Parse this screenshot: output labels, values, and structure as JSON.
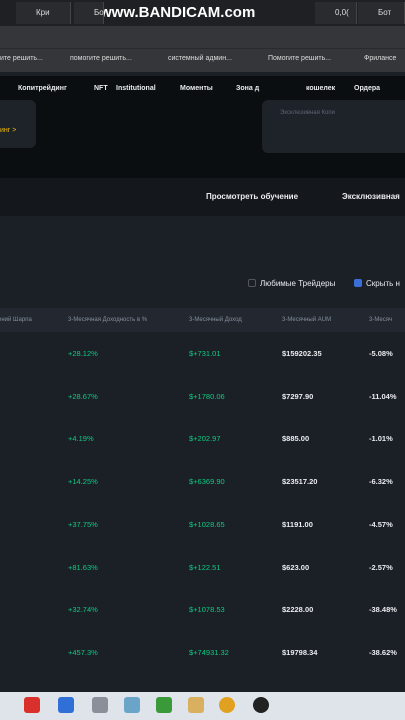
{
  "watermark": "www.BANDICAM.com",
  "tabs": [
    "Кри",
    "Бо",
    "0,0(",
    "Бот"
  ],
  "bookmarks": [
    "ите решить...",
    "помогите решить...",
    "системный админ...",
    "Помогите решить...",
    "Фрилансе"
  ],
  "nav": [
    "Копитрейдинг",
    "NFT",
    "Institutional",
    "Моменты",
    "Зона д",
    "кошелек",
    "Ордера"
  ],
  "hero_link": "инг >",
  "card_text": "Эксклюзивная Копи",
  "buttons": [
    "Просмотреть обучение",
    "Эксклюзивная"
  ],
  "filters": [
    "Любимые Трейдеры",
    "Скрыть н"
  ],
  "table": {
    "headers": [
      "ений Шарпа",
      "3-Месячная Доходность в %",
      "3-Месячный Доход",
      "3-Месячный AUM",
      "3-Месяч"
    ],
    "rows": [
      [
        "+28.12%",
        "$+731.01",
        "$159202.35",
        "-5.08%"
      ],
      [
        "+28.67%",
        "$+1780.06",
        "$7297.90",
        "-11.04%"
      ],
      [
        "+4.19%",
        "$+202.97",
        "$885.00",
        "-1.01%"
      ],
      [
        "+14.25%",
        "$+6369.90",
        "$23517.20",
        "-6.32%"
      ],
      [
        "+37.75%",
        "$+1028.65",
        "$1191.00",
        "-4.57%"
      ],
      [
        "+81.63%",
        "$+122.51",
        "$623.00",
        "-2.57%"
      ],
      [
        "+32.74%",
        "$+1078.53",
        "$2228.00",
        "-38.48%"
      ],
      [
        "+457.3%",
        "$+74931.32",
        "$19798.34",
        "-38.62%"
      ]
    ]
  }
}
